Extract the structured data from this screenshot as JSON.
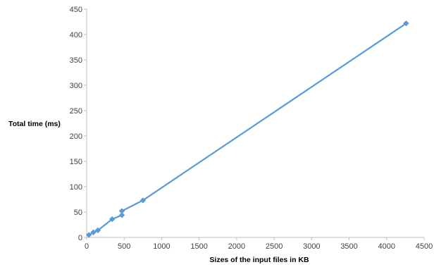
{
  "chart_data": {
    "type": "scatter",
    "title": "",
    "xlabel": "Sizes of the input files in KB",
    "ylabel": "Total time (ms)",
    "xlim": [
      0,
      4500
    ],
    "ylim": [
      0,
      450
    ],
    "x_ticks": [
      0,
      500,
      1000,
      1500,
      2000,
      2500,
      3000,
      3500,
      4000,
      4500
    ],
    "y_ticks": [
      0,
      50,
      100,
      150,
      200,
      250,
      300,
      350,
      400,
      450
    ],
    "grid": false,
    "legend": "none",
    "series": [
      {
        "marker": "diamond",
        "line": true,
        "color": "#5b9bd5",
        "points": [
          {
            "x": 30,
            "y": 5
          },
          {
            "x": 90,
            "y": 10
          },
          {
            "x": 150,
            "y": 14
          },
          {
            "x": 340,
            "y": 36
          },
          {
            "x": 470,
            "y": 44
          },
          {
            "x": 470,
            "y": 52
          },
          {
            "x": 750,
            "y": 73
          },
          {
            "x": 4260,
            "y": 422
          }
        ]
      }
    ]
  }
}
